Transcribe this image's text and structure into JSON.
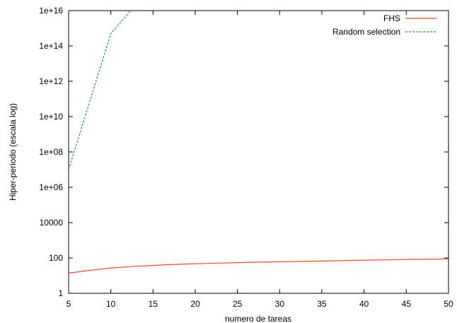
{
  "chart_data": {
    "type": "line",
    "xlabel": "numero de tareas",
    "ylabel": "Hiper-periodo (escala log)",
    "xlim": [
      5,
      50
    ],
    "ylim": [
      1,
      1e+16
    ],
    "y_scale": "log",
    "grid": false,
    "legend_position": "top-right",
    "x_ticks": [
      "5",
      "10",
      "15",
      "20",
      "25",
      "30",
      "35",
      "40",
      "45",
      "50"
    ],
    "y_ticks": [
      "1",
      "100",
      "10000",
      "1e+06",
      "1e+08",
      "1e+10",
      "1e+12",
      "1e+14",
      "1e+16"
    ],
    "series": [
      {
        "name": "FHS",
        "color": "#e8491d",
        "dash": "solid",
        "x": [
          5,
          7.5,
          10,
          12.5,
          15,
          17.5,
          20,
          22.5,
          25,
          27.5,
          30,
          32.5,
          35,
          37.5,
          40,
          42.5,
          45,
          47.5,
          50
        ],
        "y": [
          14,
          20,
          27,
          33,
          38,
          43,
          47,
          51,
          54,
          58,
          61,
          64,
          67,
          71,
          75,
          78,
          82,
          85,
          88
        ]
      },
      {
        "name": "Random selection",
        "color": "#1a9e2a",
        "dash": "dashed",
        "x": [
          5,
          10,
          15
        ],
        "y": [
          10000000.0,
          500000000000000.0,
          3e+17
        ]
      }
    ]
  }
}
